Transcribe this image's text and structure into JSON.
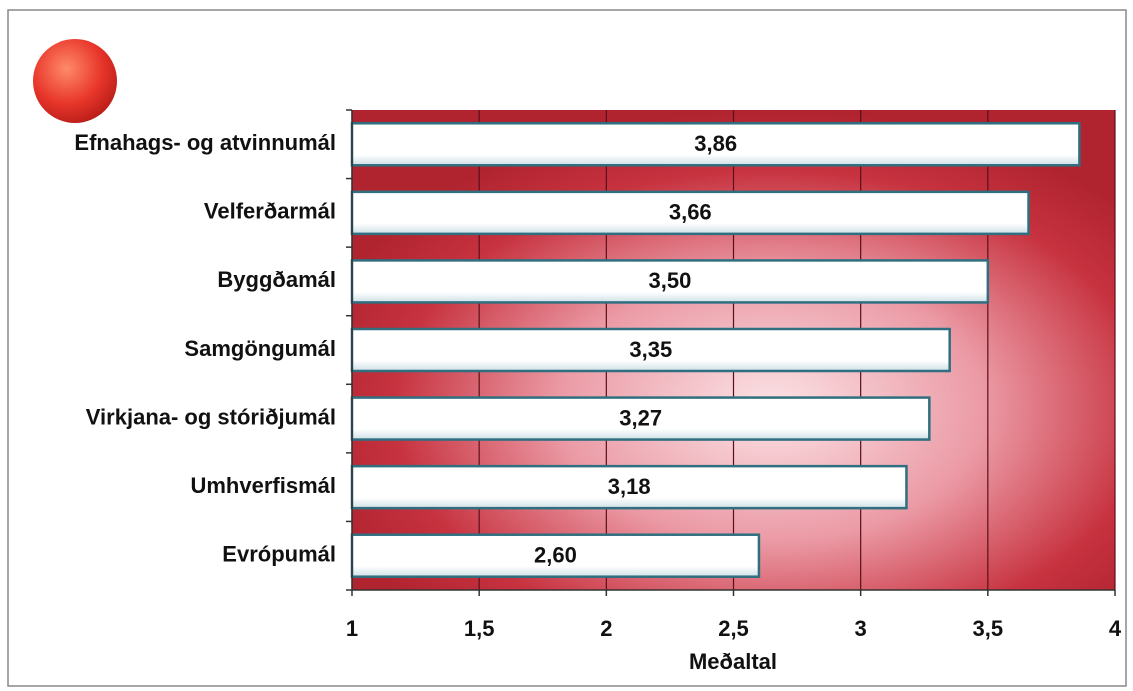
{
  "chart_data": {
    "type": "hbar",
    "categories": [
      "Efnahags- og atvinnumál",
      "Velferðarmál",
      "Byggðamál",
      "Samgöngumál",
      "Virkjana- og stóriðjumál",
      "Umhverfismál",
      "Evrópumál"
    ],
    "values": [
      3.86,
      3.66,
      3.5,
      3.35,
      3.27,
      3.18,
      2.6
    ],
    "value_labels": [
      "3,86",
      "3,66",
      "3,50",
      "3,35",
      "3,27",
      "3,18",
      "2,60"
    ],
    "xlabel": "Meðaltal",
    "xlim": [
      1,
      4
    ],
    "xticks": [
      1,
      {
        "value": 1.5,
        "label": "1,5"
      },
      2,
      {
        "value": 2.5,
        "label": "2,5"
      },
      3,
      {
        "value": 3.5,
        "label": "3,5"
      },
      4
    ],
    "grid": true,
    "color": "#ffffff"
  }
}
